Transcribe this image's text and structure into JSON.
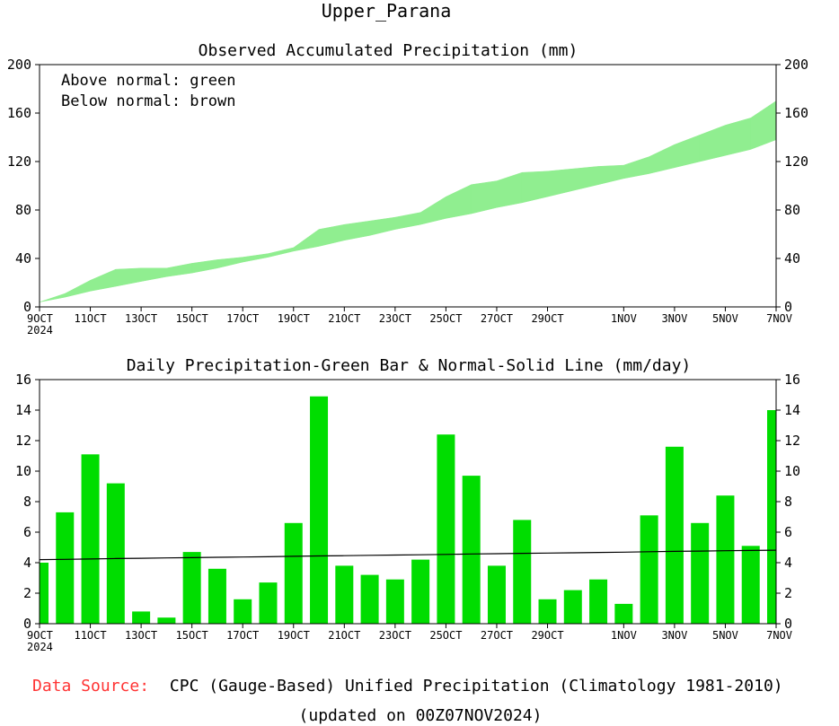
{
  "title": "Upper_Parana",
  "footer": {
    "source_label": "Data Source:",
    "source_text": "CPC (Gauge-Based) Unified Precipitation (Climatology 1981-2010)",
    "updated": "(updated on 00Z07NOV2024)"
  },
  "colors": {
    "above": "#90ee90",
    "below": "#c4a070",
    "bar": "#00dd00",
    "line": "#000000",
    "source_label": "#ff3333"
  },
  "x_ticks": [
    {
      "label": "9OCT",
      "sub": "2024",
      "day": 0
    },
    {
      "label": "11OCT",
      "day": 2
    },
    {
      "label": "13OCT",
      "day": 4
    },
    {
      "label": "15OCT",
      "day": 6
    },
    {
      "label": "17OCT",
      "day": 8
    },
    {
      "label": "19OCT",
      "day": 10
    },
    {
      "label": "21OCT",
      "day": 12
    },
    {
      "label": "23OCT",
      "day": 14
    },
    {
      "label": "25OCT",
      "day": 16
    },
    {
      "label": "27OCT",
      "day": 18
    },
    {
      "label": "29OCT",
      "day": 20
    },
    {
      "label": "1NOV",
      "day": 23
    },
    {
      "label": "3NOV",
      "day": 25
    },
    {
      "label": "5NOV",
      "day": 27
    },
    {
      "label": "7NOV",
      "day": 29
    }
  ],
  "chart_data": [
    {
      "type": "area",
      "title": "Observed Accumulated Precipitation (mm)",
      "legend_note": [
        "Above normal: green",
        "Below normal: brown"
      ],
      "ylim": [
        0,
        200
      ],
      "yticks": [
        0,
        40,
        80,
        120,
        160,
        200
      ],
      "x_days": [
        0,
        1,
        2,
        3,
        4,
        5,
        6,
        7,
        8,
        9,
        10,
        11,
        12,
        13,
        14,
        15,
        16,
        17,
        18,
        19,
        20,
        21,
        22,
        23,
        24,
        25,
        26,
        27,
        28,
        29
      ],
      "series": [
        {
          "name": "Observed",
          "values": [
            4,
            11,
            22,
            31,
            32,
            32,
            36,
            39,
            41,
            44,
            49,
            64,
            68,
            71,
            74,
            78,
            91,
            101,
            104,
            111,
            112,
            114,
            116,
            117,
            124,
            134,
            142,
            150,
            156,
            170
          ]
        },
        {
          "name": "Normal",
          "values": [
            4,
            8,
            13,
            17,
            21,
            25,
            28,
            32,
            37,
            41,
            46,
            50,
            55,
            59,
            64,
            68,
            73,
            77,
            82,
            86,
            91,
            96,
            101,
            106,
            110,
            115,
            120,
            125,
            130,
            138
          ]
        }
      ]
    },
    {
      "type": "bar",
      "title": "Daily Precipitation-Green Bar & Normal-Solid Line (mm/day)",
      "ylim": [
        0,
        16
      ],
      "yticks": [
        0,
        2,
        4,
        6,
        8,
        10,
        12,
        14,
        16
      ],
      "x_days": [
        0,
        1,
        2,
        3,
        4,
        5,
        6,
        7,
        8,
        9,
        10,
        11,
        12,
        13,
        14,
        15,
        16,
        17,
        18,
        19,
        20,
        21,
        22,
        23,
        24,
        25,
        26,
        27,
        28,
        29
      ],
      "series": [
        {
          "name": "Daily Precipitation",
          "values": [
            4.0,
            7.3,
            11.1,
            9.2,
            0.8,
            0.4,
            4.7,
            3.6,
            1.6,
            2.7,
            6.6,
            14.9,
            3.8,
            3.2,
            2.9,
            4.2,
            12.4,
            9.7,
            3.8,
            6.8,
            1.6,
            2.2,
            2.9,
            1.3,
            7.1,
            11.6,
            6.6,
            8.4,
            5.1,
            14.0
          ]
        },
        {
          "name": "Normal",
          "values": [
            4.2,
            4.22,
            4.24,
            4.27,
            4.29,
            4.31,
            4.33,
            4.35,
            4.37,
            4.39,
            4.42,
            4.44,
            4.46,
            4.48,
            4.5,
            4.52,
            4.54,
            4.57,
            4.59,
            4.61,
            4.63,
            4.65,
            4.67,
            4.69,
            4.72,
            4.74,
            4.76,
            4.78,
            4.8,
            4.82
          ]
        }
      ]
    }
  ]
}
